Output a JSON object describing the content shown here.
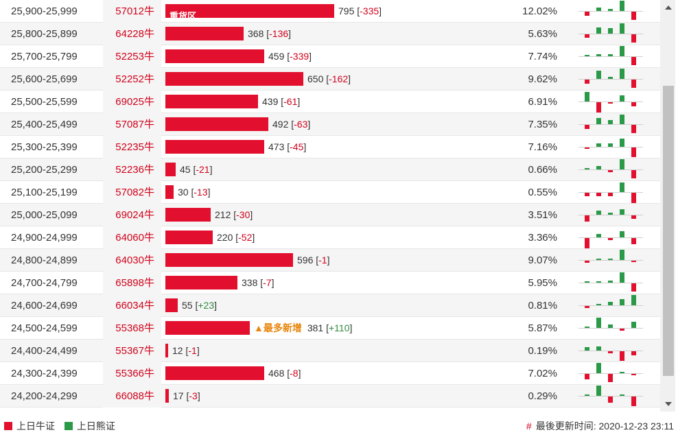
{
  "rows": [
    {
      "range": "25,900-25,999",
      "code": "57012牛",
      "count": "795",
      "delta": "-335",
      "pct": "12.02%",
      "bar": 0.41,
      "tag": "重货区",
      "newtag": ""
    },
    {
      "range": "25,800-25,899",
      "code": "64228牛",
      "count": "368",
      "delta": "-136",
      "pct": "5.63%",
      "bar": 0.19,
      "tag": "",
      "newtag": ""
    },
    {
      "range": "25,700-25,799",
      "code": "52253牛",
      "count": "459",
      "delta": "-339",
      "pct": "7.74%",
      "bar": 0.24,
      "tag": "",
      "newtag": ""
    },
    {
      "range": "25,600-25,699",
      "code": "52252牛",
      "count": "650",
      "delta": "-162",
      "pct": "9.62%",
      "bar": 0.335,
      "tag": "",
      "newtag": ""
    },
    {
      "range": "25,500-25,599",
      "code": "69025牛",
      "count": "439",
      "delta": "-61",
      "pct": "6.91%",
      "bar": 0.225,
      "tag": "",
      "newtag": ""
    },
    {
      "range": "25,400-25,499",
      "code": "57087牛",
      "count": "492",
      "delta": "-63",
      "pct": "7.35%",
      "bar": 0.25,
      "tag": "",
      "newtag": ""
    },
    {
      "range": "25,300-25,399",
      "code": "52235牛",
      "count": "473",
      "delta": "-45",
      "pct": "7.16%",
      "bar": 0.24,
      "tag": "",
      "newtag": ""
    },
    {
      "range": "25,200-25,299",
      "code": "52236牛",
      "count": "45",
      "delta": "-21",
      "pct": "0.66%",
      "bar": 0.025,
      "tag": "",
      "newtag": ""
    },
    {
      "range": "25,100-25,199",
      "code": "57082牛",
      "count": "30",
      "delta": "-13",
      "pct": "0.55%",
      "bar": 0.02,
      "tag": "",
      "newtag": ""
    },
    {
      "range": "25,000-25,099",
      "code": "69024牛",
      "count": "212",
      "delta": "-30",
      "pct": "3.51%",
      "bar": 0.11,
      "tag": "",
      "newtag": ""
    },
    {
      "range": "24,900-24,999",
      "code": "64060牛",
      "count": "220",
      "delta": "-52",
      "pct": "3.36%",
      "bar": 0.115,
      "tag": "",
      "newtag": ""
    },
    {
      "range": "24,800-24,899",
      "code": "64030牛",
      "count": "596",
      "delta": "-1",
      "pct": "9.07%",
      "bar": 0.31,
      "tag": "",
      "newtag": ""
    },
    {
      "range": "24,700-24,799",
      "code": "65898牛",
      "count": "338",
      "delta": "-7",
      "pct": "5.95%",
      "bar": 0.175,
      "tag": "",
      "newtag": ""
    },
    {
      "range": "24,600-24,699",
      "code": "66034牛",
      "count": "55",
      "delta": "+23",
      "pct": "0.81%",
      "bar": 0.03,
      "tag": "",
      "newtag": ""
    },
    {
      "range": "24,500-24,599",
      "code": "55368牛",
      "count": "381",
      "delta": "+110",
      "pct": "5.87%",
      "bar": 0.205,
      "tag": "",
      "newtag": "▲最多新增"
    },
    {
      "range": "24,400-24,499",
      "code": "55367牛",
      "count": "12",
      "delta": "-1",
      "pct": "0.19%",
      "bar": 0.007,
      "tag": "",
      "newtag": ""
    },
    {
      "range": "24,300-24,399",
      "code": "55366牛",
      "count": "468",
      "delta": "-8",
      "pct": "7.02%",
      "bar": 0.24,
      "tag": "",
      "newtag": ""
    },
    {
      "range": "24,200-24,299",
      "code": "66088牛",
      "count": "17",
      "delta": "-3",
      "pct": "0.29%",
      "bar": 0.009,
      "tag": "",
      "newtag": ""
    }
  ],
  "sparks": [
    [
      [
        -1,
        0.4
      ],
      [
        1,
        0.3
      ],
      [
        1,
        0.2
      ],
      [
        1,
        1.0
      ],
      [
        -1,
        0.8
      ]
    ],
    [
      [
        -1,
        0.3
      ],
      [
        1,
        0.6
      ],
      [
        1,
        0.5
      ],
      [
        1,
        1.0
      ],
      [
        -1,
        0.8
      ]
    ],
    [
      [
        1,
        0.1
      ],
      [
        1,
        0.2
      ],
      [
        1,
        0.2
      ],
      [
        1,
        1.0
      ],
      [
        -1,
        0.8
      ]
    ],
    [
      [
        -1,
        0.4
      ],
      [
        1,
        0.8
      ],
      [
        1,
        0.2
      ],
      [
        1,
        1.0
      ],
      [
        -1,
        0.8
      ]
    ],
    [
      [
        1,
        0.9
      ],
      [
        -1,
        1.0
      ],
      [
        -1,
        0.1
      ],
      [
        1,
        0.6
      ],
      [
        -1,
        0.4
      ]
    ],
    [
      [
        -1,
        0.4
      ],
      [
        1,
        0.6
      ],
      [
        1,
        0.4
      ],
      [
        1,
        0.9
      ],
      [
        -1,
        0.8
      ]
    ],
    [
      [
        -1,
        0.1
      ],
      [
        1,
        0.3
      ],
      [
        1,
        0.3
      ],
      [
        1,
        0.8
      ],
      [
        -1,
        0.9
      ]
    ],
    [
      [
        1,
        0.1
      ],
      [
        1,
        0.3
      ],
      [
        -1,
        0.2
      ],
      [
        1,
        1.0
      ],
      [
        -1,
        0.8
      ]
    ],
    [
      [
        -1,
        0.3
      ],
      [
        -1,
        0.3
      ],
      [
        -1,
        0.3
      ],
      [
        1,
        0.9
      ],
      [
        -1,
        1.0
      ]
    ],
    [
      [
        -1,
        0.6
      ],
      [
        1,
        0.4
      ],
      [
        1,
        0.2
      ],
      [
        1,
        0.5
      ],
      [
        -1,
        0.3
      ]
    ],
    [
      [
        -1,
        1.0
      ],
      [
        1,
        0.3
      ],
      [
        -1,
        0.2
      ],
      [
        1,
        0.6
      ],
      [
        -1,
        0.6
      ]
    ],
    [
      [
        -1,
        0.2
      ],
      [
        1,
        0.1
      ],
      [
        1,
        0.1
      ],
      [
        1,
        1.0
      ],
      [
        -1,
        0.1
      ]
    ],
    [
      [
        1,
        0.0
      ],
      [
        1,
        0.0
      ],
      [
        1,
        0.2
      ],
      [
        1,
        1.0
      ],
      [
        -1,
        0.8
      ]
    ],
    [
      [
        -1,
        0.2
      ],
      [
        1,
        0.0
      ],
      [
        1,
        0.3
      ],
      [
        1,
        0.6
      ],
      [
        1,
        1.0
      ]
    ],
    [
      [
        1,
        0.1
      ],
      [
        1,
        1.0
      ],
      [
        1,
        0.3
      ],
      [
        -1,
        0.2
      ],
      [
        1,
        0.6
      ]
    ],
    [
      [
        1,
        0.3
      ],
      [
        1,
        0.4
      ],
      [
        -1,
        0.2
      ],
      [
        -1,
        0.9
      ],
      [
        -1,
        0.4
      ]
    ],
    [
      [
        -1,
        0.5
      ],
      [
        1,
        1.0
      ],
      [
        -1,
        0.8
      ],
      [
        1,
        0.1
      ],
      [
        -1,
        0.1
      ]
    ],
    [
      [
        1,
        0.0
      ],
      [
        1,
        1.0
      ],
      [
        -1,
        0.6
      ],
      [
        1,
        0.1
      ],
      [
        -1,
        0.9
      ]
    ]
  ],
  "legend": {
    "bull": "上日牛证",
    "bear": "上日熊证"
  },
  "updated": {
    "hash": "#",
    "text": "最後更新时间: 2020-12-23 23:11"
  },
  "colors": {
    "bull": "#e2102e",
    "bear": "#2b9a48",
    "delta_neg": "#d0021b",
    "delta_pos": "#2e8b3e",
    "highlight": "#e8850c"
  }
}
